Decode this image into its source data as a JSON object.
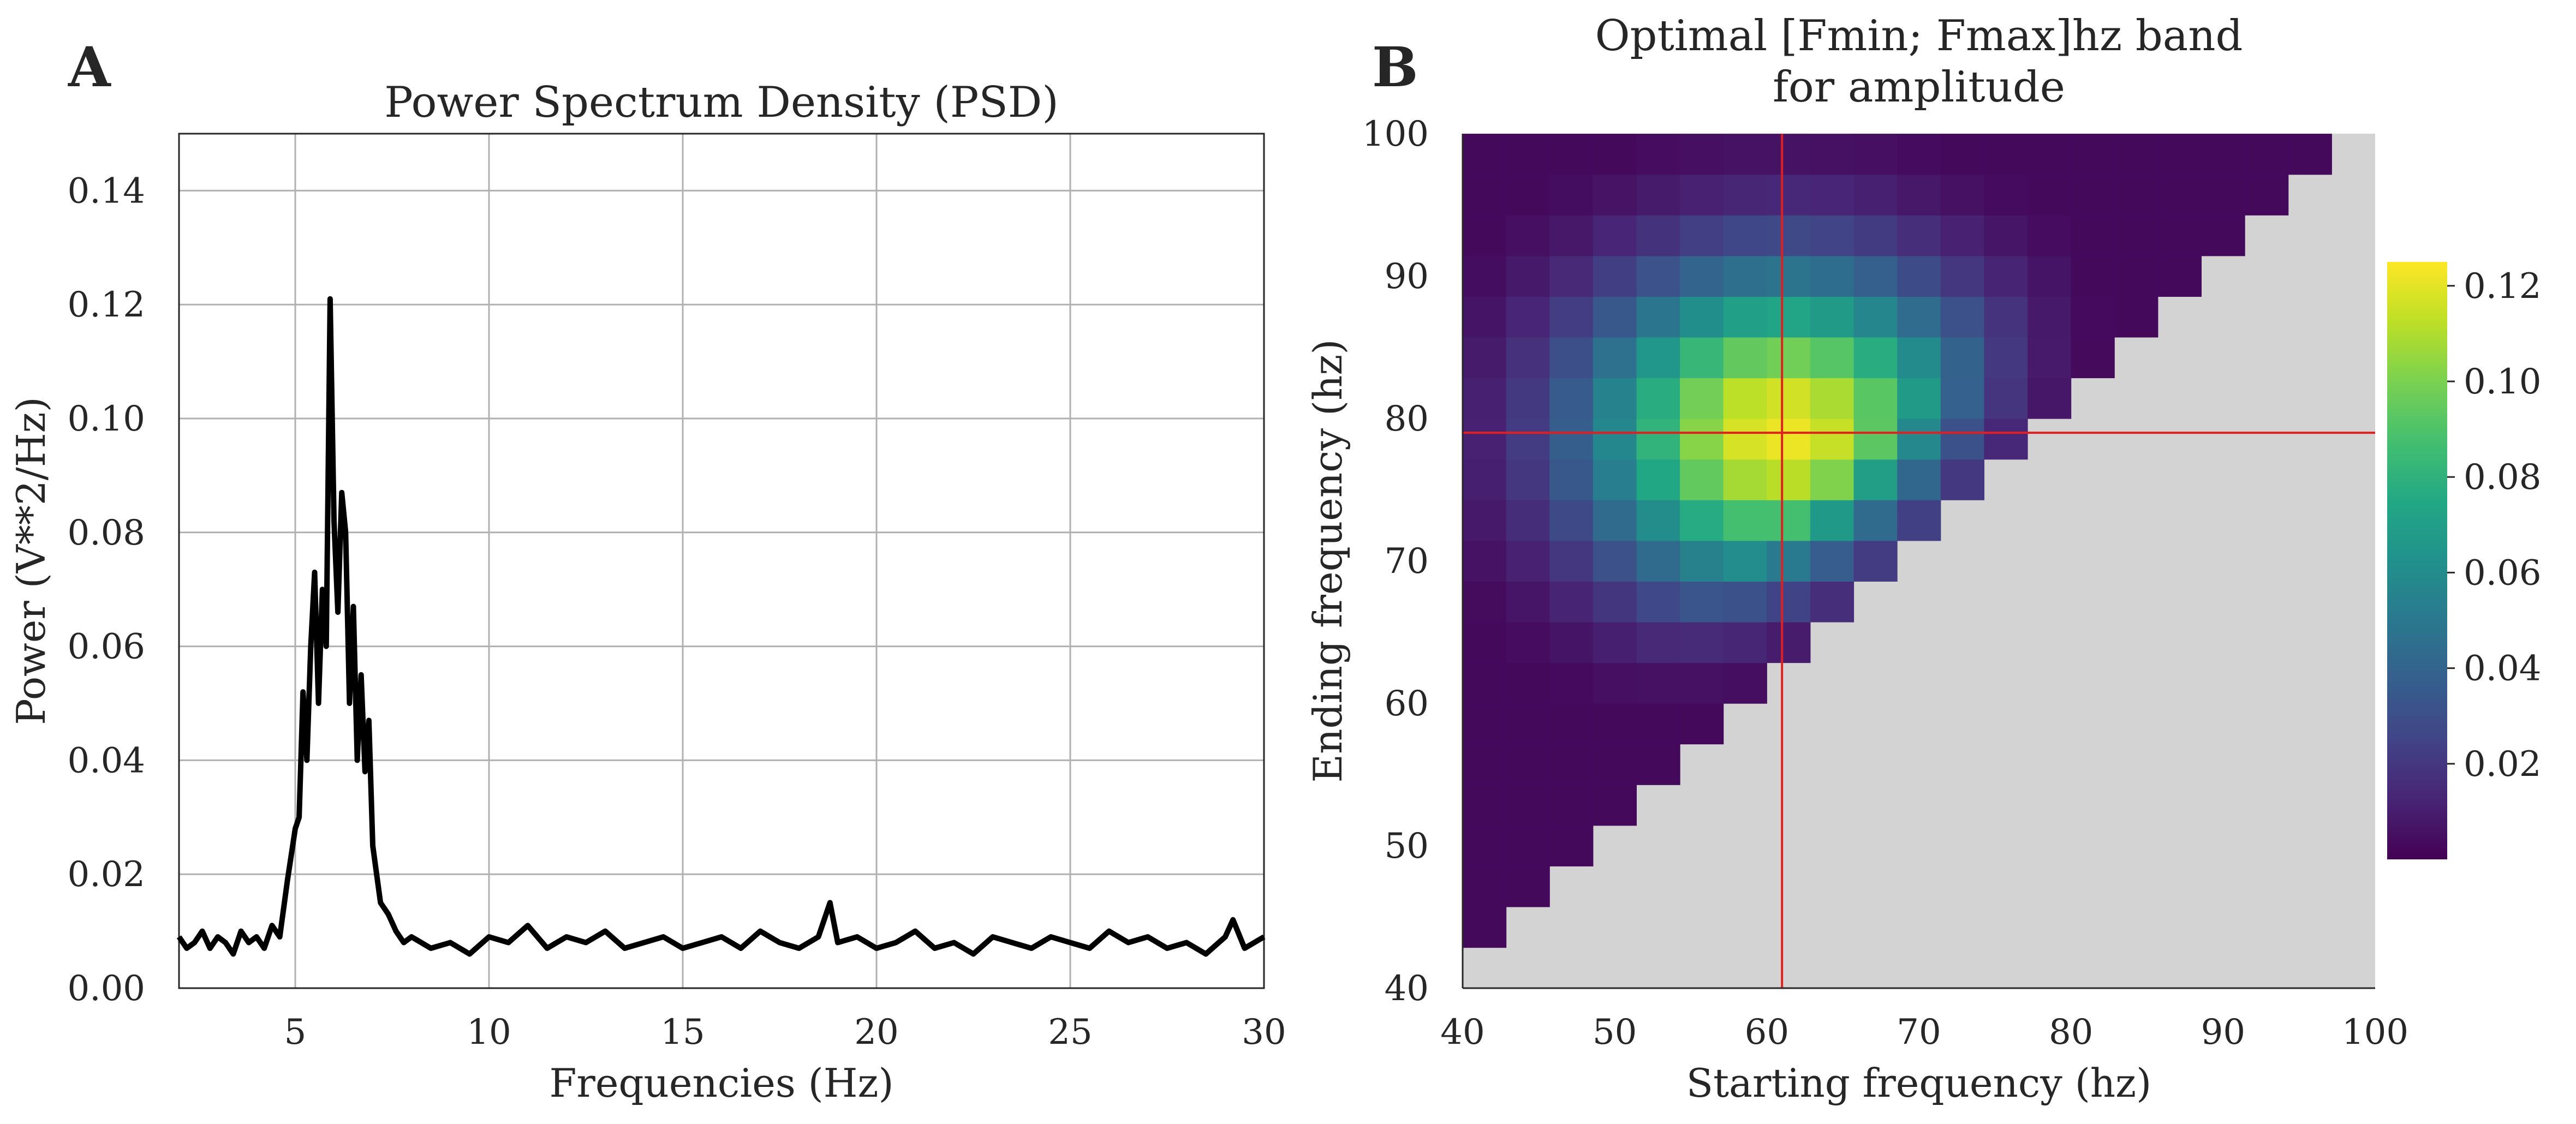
{
  "panels": {
    "a": {
      "letter": "A"
    },
    "b": {
      "letter": "B"
    }
  },
  "chart_data": [
    {
      "type": "line",
      "title": "Power Spectrum Density (PSD)",
      "xlabel": "Frequencies (Hz)",
      "ylabel": "Power (V**2/Hz)",
      "xlim": [
        2,
        30
      ],
      "ylim": [
        0,
        0.15
      ],
      "xticks": [
        "5",
        "10",
        "15",
        "20",
        "25",
        "30"
      ],
      "yticks": [
        "0.00",
        "0.02",
        "0.04",
        "0.06",
        "0.08",
        "0.10",
        "0.12",
        "0.14"
      ],
      "grid": true,
      "line_color": "#000000",
      "series": [
        {
          "x": [
            2.0,
            2.2,
            2.4,
            2.6,
            2.8,
            3.0,
            3.2,
            3.4,
            3.6,
            3.8,
            4.0,
            4.2,
            4.4,
            4.6,
            4.8,
            5.0,
            5.1,
            5.2,
            5.3,
            5.4,
            5.5,
            5.6,
            5.7,
            5.8,
            5.9,
            6.0,
            6.1,
            6.2,
            6.3,
            6.4,
            6.5,
            6.6,
            6.7,
            6.8,
            6.9,
            7.0,
            7.1,
            7.2,
            7.4,
            7.6,
            7.8,
            8.0,
            8.5,
            9.0,
            9.5,
            10.0,
            10.5,
            11.0,
            11.5,
            12.0,
            12.5,
            13.0,
            13.5,
            14.0,
            14.5,
            15.0,
            15.5,
            16.0,
            16.5,
            17.0,
            17.5,
            18.0,
            18.5,
            18.8,
            19.0,
            19.5,
            20.0,
            20.5,
            21.0,
            21.5,
            22.0,
            22.5,
            23.0,
            23.5,
            24.0,
            24.5,
            25.0,
            25.5,
            26.0,
            26.5,
            27.0,
            27.5,
            28.0,
            28.5,
            29.0,
            29.2,
            29.5,
            30.0
          ],
          "y": [
            0.009,
            0.007,
            0.008,
            0.01,
            0.007,
            0.009,
            0.008,
            0.006,
            0.01,
            0.008,
            0.009,
            0.007,
            0.011,
            0.009,
            0.019,
            0.028,
            0.03,
            0.052,
            0.04,
            0.06,
            0.073,
            0.05,
            0.07,
            0.06,
            0.121,
            0.082,
            0.066,
            0.087,
            0.08,
            0.05,
            0.067,
            0.04,
            0.055,
            0.038,
            0.047,
            0.025,
            0.02,
            0.015,
            0.013,
            0.01,
            0.008,
            0.009,
            0.007,
            0.008,
            0.006,
            0.009,
            0.008,
            0.011,
            0.007,
            0.009,
            0.008,
            0.01,
            0.007,
            0.008,
            0.009,
            0.007,
            0.008,
            0.009,
            0.007,
            0.01,
            0.008,
            0.007,
            0.009,
            0.015,
            0.008,
            0.009,
            0.007,
            0.008,
            0.01,
            0.007,
            0.008,
            0.006,
            0.009,
            0.008,
            0.007,
            0.009,
            0.008,
            0.007,
            0.01,
            0.008,
            0.009,
            0.007,
            0.008,
            0.006,
            0.009,
            0.012,
            0.007,
            0.009
          ]
        }
      ]
    },
    {
      "type": "heatmap",
      "title": "Optimal [Fmin; Fmax]hz band",
      "title_line2": "for amplitude",
      "xlabel": "Starting frequency (hz)",
      "ylabel": "Ending frequency (hz)",
      "xlim": [
        40,
        100
      ],
      "ylim": [
        40,
        100
      ],
      "xticks": [
        "40",
        "50",
        "60",
        "70",
        "80",
        "90",
        "100"
      ],
      "yticks": [
        "40",
        "50",
        "60",
        "70",
        "80",
        "90",
        "100"
      ],
      "cell_step": 2.857,
      "background_color": "#d3d3d3",
      "colormap": "viridis",
      "colorbar_range": [
        0.0,
        0.125
      ],
      "colorbar_ticks": [
        "0.02",
        "0.04",
        "0.06",
        "0.08",
        "0.10",
        "0.12"
      ],
      "crosshair": {
        "x": 61,
        "y": 79,
        "color": "#e02020"
      },
      "note": "Cell value peaks (~0.12) near start 61 Hz, end 79 Hz; only cells with end > start are filled."
    }
  ]
}
